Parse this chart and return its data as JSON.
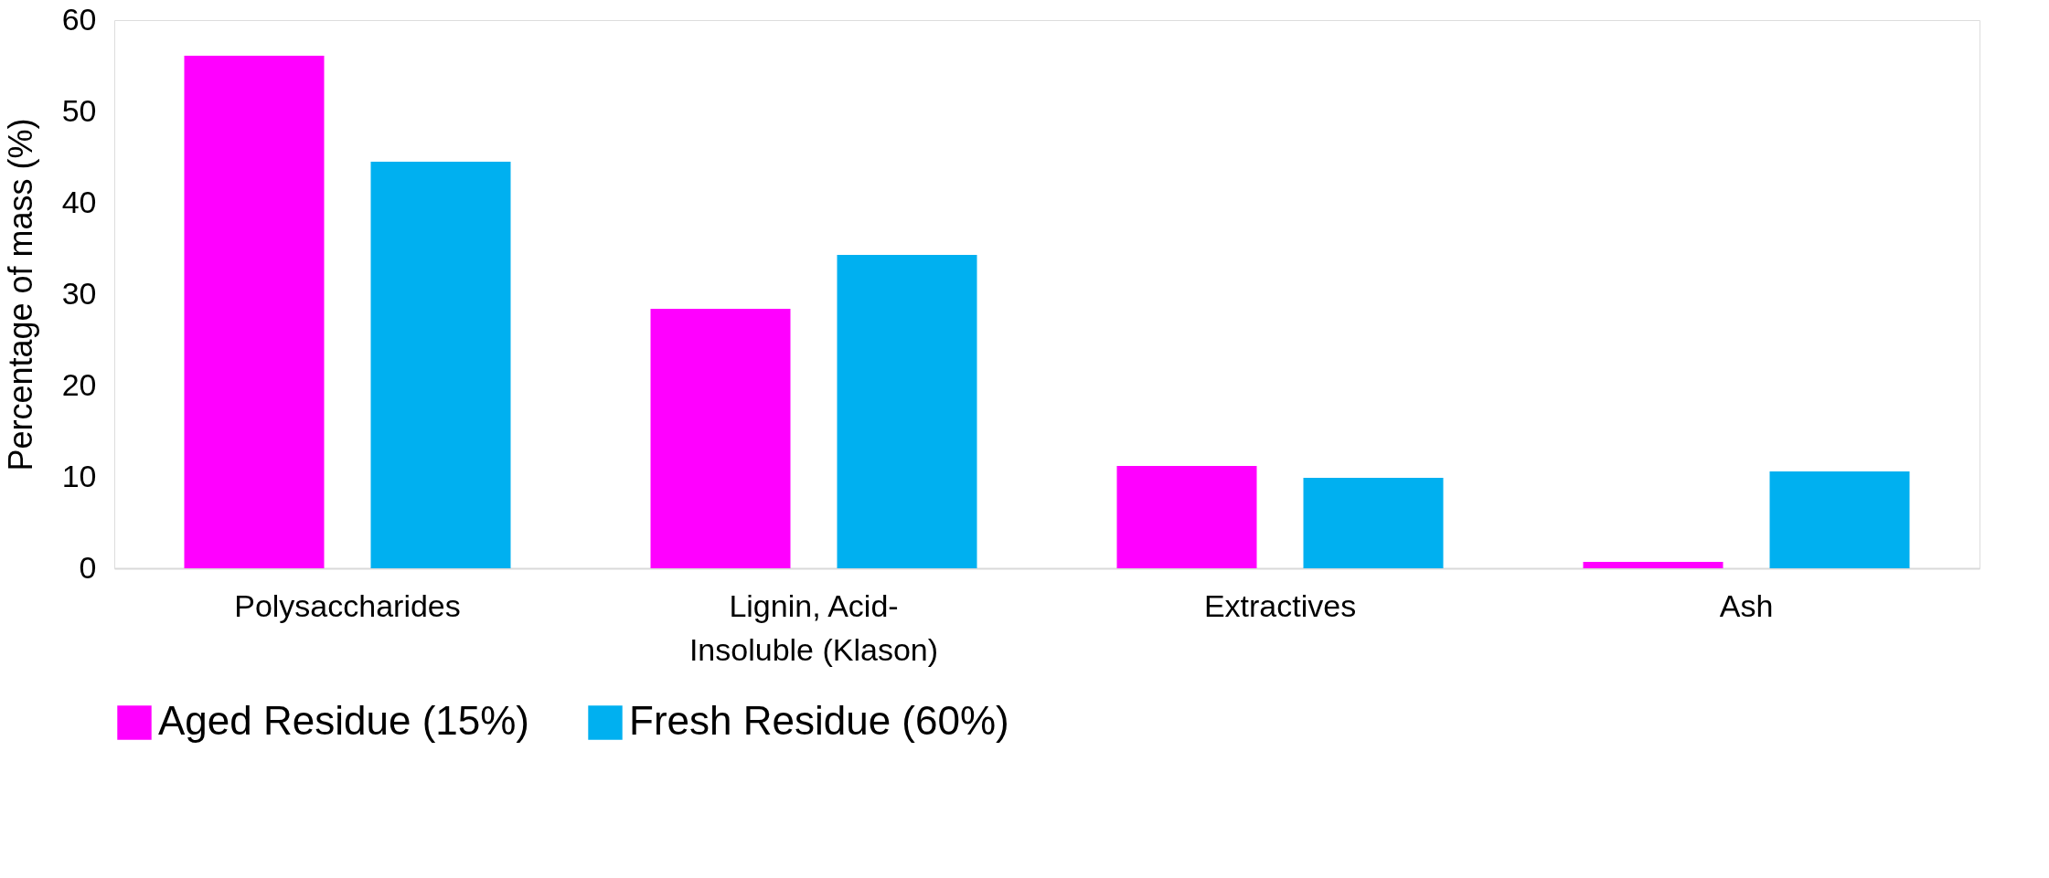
{
  "chart_data": {
    "type": "bar",
    "ylabel": "Percentage of mass (%)",
    "categories": [
      "Polysaccharides",
      "Lignin, Acid-\nInsoluble (Klason)",
      "Extractives",
      "Ash"
    ],
    "series": [
      {
        "name": "Aged Residue (15%)",
        "color": "#ff00ff",
        "values": [
          56.1,
          28.4,
          11.2,
          0.7
        ]
      },
      {
        "name": "Fresh Residue (60%)",
        "color": "#00b0f0",
        "values": [
          44.5,
          34.3,
          9.9,
          10.6
        ]
      }
    ],
    "ylim": [
      0,
      60
    ],
    "yticks": [
      0,
      10,
      20,
      30,
      40,
      50,
      60
    ],
    "grid": false,
    "legend": "bottom"
  }
}
